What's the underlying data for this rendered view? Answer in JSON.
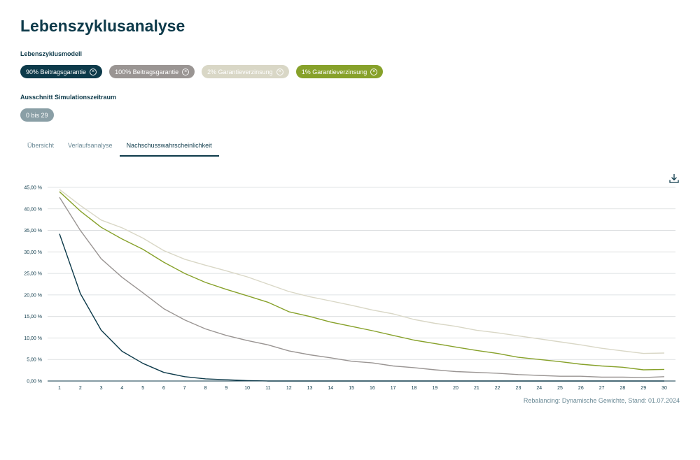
{
  "page": {
    "title": "Lebenszyklusanalyse"
  },
  "filters": {
    "model_label": "Lebenszyklusmodell",
    "model_chips": [
      {
        "label": "90% Beitragsgarantie",
        "color": "#0d3a4a"
      },
      {
        "label": "100% Beitragsgarantie",
        "color": "#9a9593"
      },
      {
        "label": "2% Garantieverzinsung",
        "color": "#d9d7c6"
      },
      {
        "label": "1% Garantieverzinsung",
        "color": "#87a12a"
      }
    ],
    "range_label": "Ausschnitt Simulationszeitraum",
    "range_value": "0 bis 29"
  },
  "tabs": [
    {
      "label": "Übersicht",
      "active": false
    },
    {
      "label": "Verlaufsanalyse",
      "active": false
    },
    {
      "label": "Nachschusswahrscheinlichkeit",
      "active": true
    }
  ],
  "download_icon": "download-icon",
  "footer": "Rebalancing: Dynamische Gewichte, Stand: 01.07.2024",
  "chart_data": {
    "type": "line",
    "x": [
      1,
      2,
      3,
      4,
      5,
      6,
      7,
      8,
      9,
      10,
      11,
      12,
      13,
      14,
      15,
      16,
      17,
      18,
      19,
      20,
      21,
      22,
      23,
      24,
      25,
      26,
      27,
      28,
      29,
      30
    ],
    "ylim": [
      0,
      45
    ],
    "y_ticks": [
      0,
      5,
      10,
      15,
      20,
      25,
      30,
      35,
      40,
      45
    ],
    "y_tick_labels": [
      "0,00 %",
      "5,00 %",
      "10,00 %",
      "15,00 %",
      "20,00 %",
      "25,00 %",
      "30,00 %",
      "35,00 %",
      "40,00 %",
      "45,00 %"
    ],
    "grid": true,
    "series": [
      {
        "color": "#d9d7c6",
        "values": [
          44.5,
          40.8,
          37.4,
          35.6,
          33.2,
          30.3,
          28.3,
          26.9,
          25.6,
          24.2,
          22.5,
          20.8,
          19.6,
          18.6,
          17.6,
          16.5,
          15.6,
          14.3,
          13.4,
          12.7,
          11.8,
          11.2,
          10.5,
          9.8,
          9.1,
          8.4,
          7.6,
          7.0,
          6.4,
          6.5
        ]
      },
      {
        "color": "#87a12a",
        "values": [
          44.0,
          39.5,
          35.7,
          33.0,
          30.6,
          27.6,
          25.0,
          22.9,
          21.3,
          19.8,
          18.3,
          16.1,
          15.0,
          13.7,
          12.7,
          11.7,
          10.6,
          9.5,
          8.7,
          7.9,
          7.1,
          6.4,
          5.5,
          5.0,
          4.5,
          3.9,
          3.5,
          3.2,
          2.6,
          2.7
        ]
      },
      {
        "color": "#9a9593",
        "values": [
          42.7,
          35.0,
          28.4,
          24.1,
          20.5,
          16.8,
          14.2,
          12.1,
          10.6,
          9.4,
          8.4,
          7.0,
          6.1,
          5.4,
          4.6,
          4.2,
          3.5,
          3.1,
          2.6,
          2.2,
          2.0,
          1.8,
          1.5,
          1.3,
          1.1,
          1.1,
          0.9,
          0.9,
          0.8,
          1.0
        ]
      },
      {
        "color": "#0d3a4a",
        "values": [
          34.2,
          20.3,
          11.8,
          6.9,
          4.1,
          2.0,
          1.0,
          0.5,
          0.3,
          0.1,
          0,
          0,
          0,
          0,
          0,
          0,
          0,
          0,
          0,
          0,
          0,
          0,
          0,
          0,
          0,
          0,
          0,
          0,
          0,
          0
        ]
      }
    ]
  }
}
